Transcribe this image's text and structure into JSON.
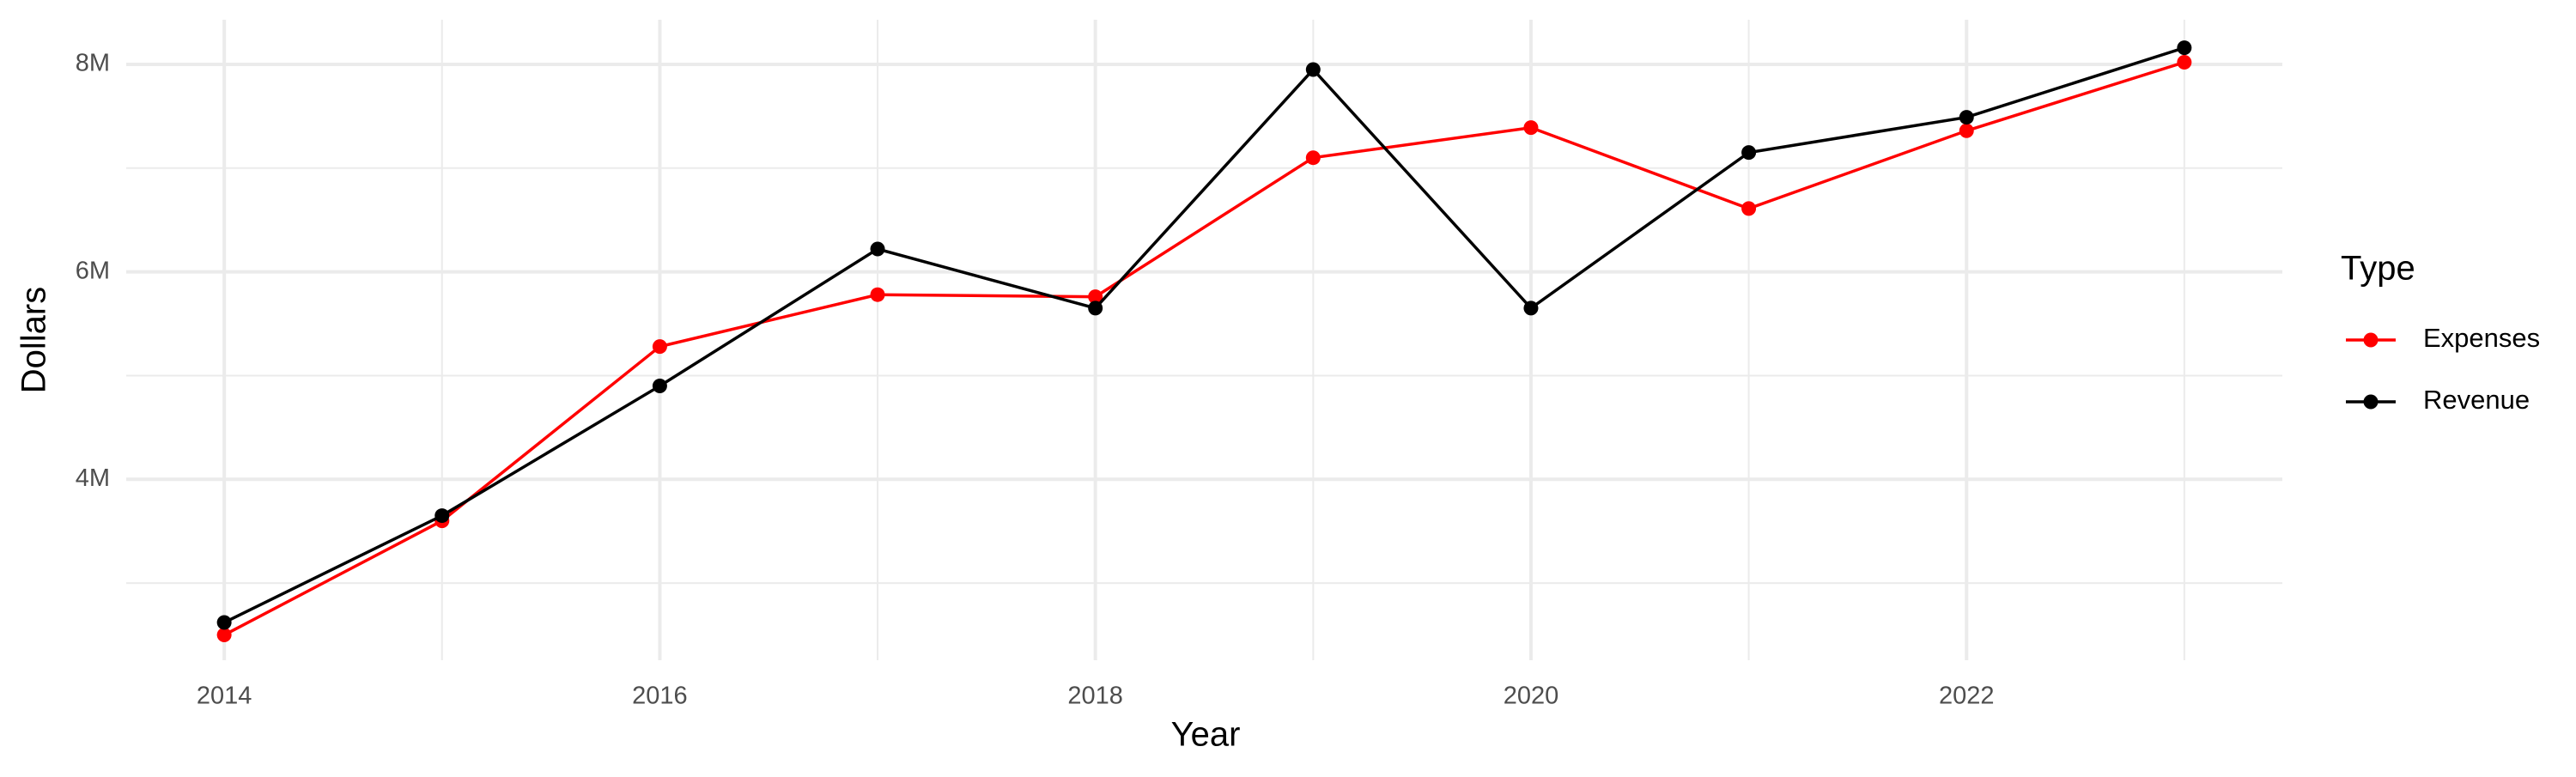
{
  "chart_data": {
    "type": "line",
    "x_label": "Year",
    "y_label": "Dollars",
    "legend_title": "Type",
    "x": [
      2014,
      2015,
      2016,
      2017,
      2018,
      2019,
      2020,
      2021,
      2022,
      2023
    ],
    "series": [
      {
        "name": "Expenses",
        "color": "#ff0000",
        "values": [
          2500000,
          3600000,
          5280000,
          5780000,
          5760000,
          7100000,
          7390000,
          6610000,
          7360000,
          8020000
        ]
      },
      {
        "name": "Revenue",
        "color": "#000000",
        "values": [
          2620000,
          3650000,
          4900000,
          6220000,
          5650000,
          7950000,
          5650000,
          7150000,
          7490000,
          8160000
        ]
      }
    ],
    "xlim": [
      2013.55,
      2023.45
    ],
    "xticks": [
      2014,
      2016,
      2018,
      2020,
      2022
    ],
    "minor_xticks": [
      2015,
      2017,
      2019,
      2021,
      2023
    ],
    "ylim": [
      2256000,
      8430000
    ],
    "yticks": [
      {
        "value": 4000000,
        "label": "4M"
      },
      {
        "value": 6000000,
        "label": "6M"
      },
      {
        "value": 8000000,
        "label": "8M"
      }
    ],
    "minor_yticks": [
      3000000,
      5000000,
      7000000
    ],
    "grid": true,
    "legend": "right"
  }
}
